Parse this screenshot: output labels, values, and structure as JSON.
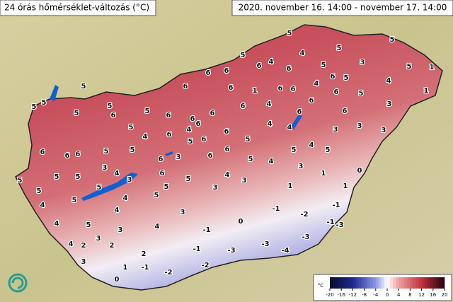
{
  "title": "24 órás hőmérséklet-változás (°C)",
  "period": "2020. november 16. 14:00 - november 17. 14:00",
  "stations": [
    "5",
    "5",
    "5",
    "5",
    "5",
    "6",
    "5",
    "5",
    "6",
    "6",
    "6",
    "6",
    "6",
    "6",
    "5",
    "4",
    "5",
    "4",
    "6",
    "5",
    "5",
    "4",
    "1",
    "6",
    "4",
    "6",
    "6",
    "6",
    "4",
    "6",
    "6",
    "5",
    "5",
    "3",
    "4",
    "3",
    "5",
    "5",
    "1",
    "1",
    "6",
    "3",
    "3",
    "3",
    "5",
    "4",
    "5",
    "4",
    "6",
    "5",
    "5",
    "4",
    "3",
    "1",
    "0",
    "1",
    "1",
    "-1",
    "-2",
    "-1",
    "-1",
    "-3",
    "0",
    "-1",
    "-1",
    "-3",
    "-3",
    "-4",
    "-3",
    "-2",
    "-2",
    "0",
    "-1",
    "1",
    "2",
    "2",
    "3",
    "3",
    "2",
    "4",
    "5",
    "3",
    "4",
    "3",
    "5",
    "4",
    "4",
    "4",
    "4",
    "5",
    "5",
    "3",
    "5",
    "6",
    "5",
    "3",
    "5",
    "6",
    "6",
    "4",
    "3",
    "3",
    "6",
    "6",
    "6",
    "4",
    "6",
    "6",
    "5",
    "5",
    "6",
    "6",
    "4",
    "6",
    "6",
    "6",
    "5",
    "5",
    "3",
    "4",
    "5",
    "5"
  ],
  "colorbar": {
    "unit": "°C",
    "ticks": [
      -20,
      -16,
      -12,
      -8,
      -4,
      0,
      4,
      8,
      12,
      16,
      20
    ]
  }
}
